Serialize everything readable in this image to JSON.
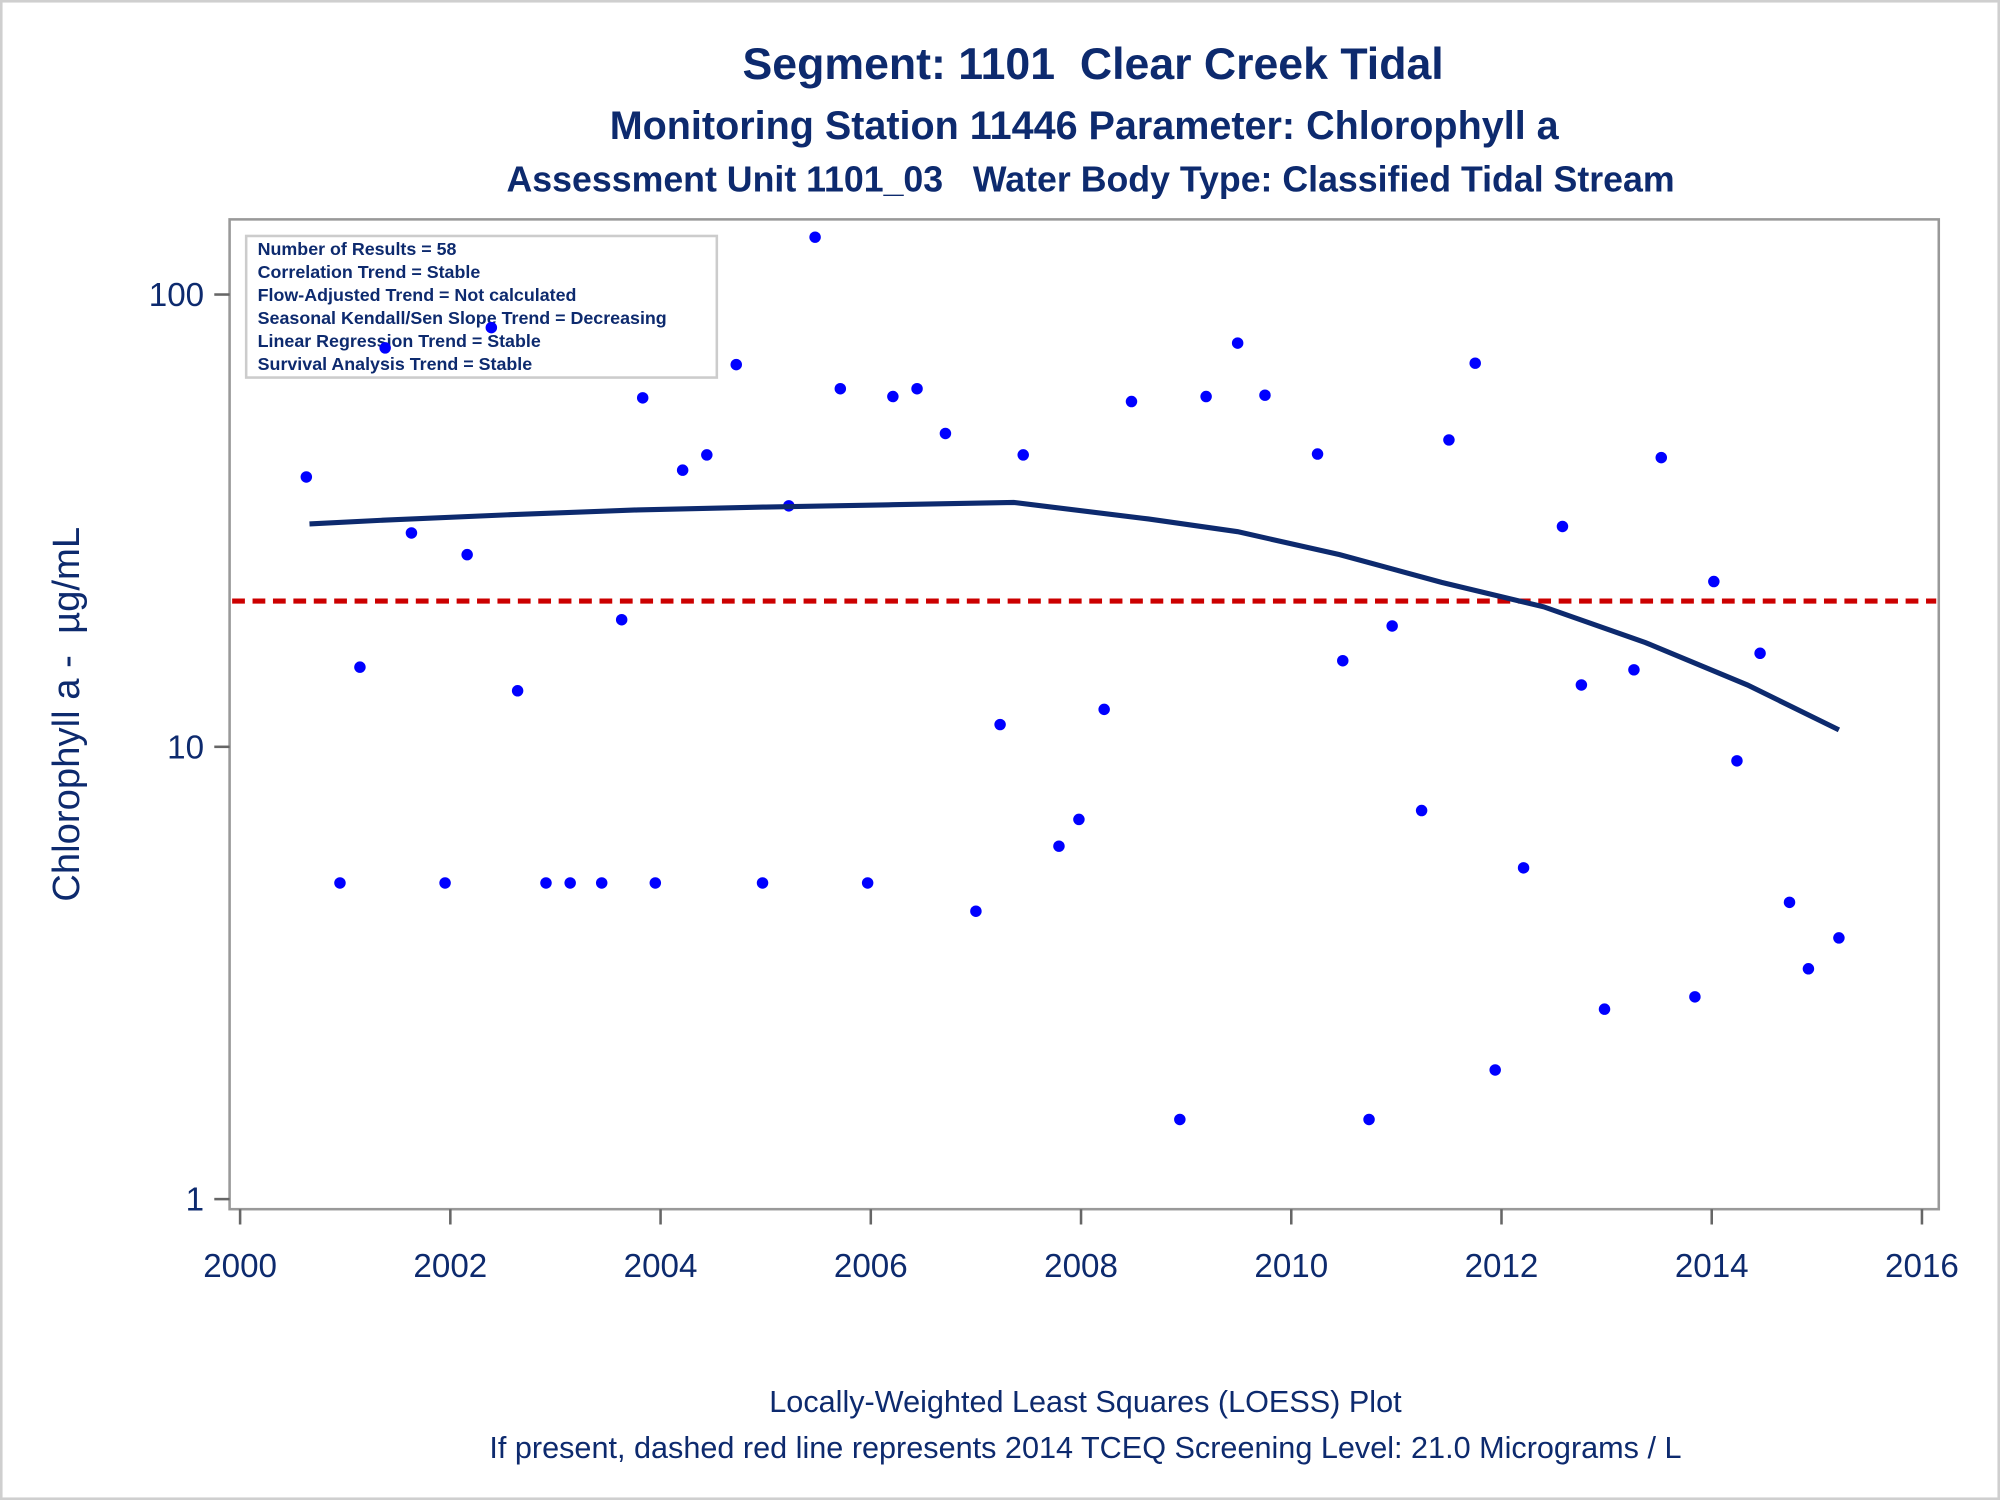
{
  "chart_data": {
    "type": "scatter",
    "title": "Segment: 1101  Clear Creek Tidal",
    "subtitles": [
      "Monitoring Station 11446 Parameter: Chlorophyll a",
      "Assessment Unit 1101_03   Water Body Type: Classified Tidal Stream"
    ],
    "ylabel": "Chlorophyll a -  µg/mL",
    "footnotes": [
      "Locally-Weighted Least Squares (LOESS) Plot",
      "If present, dashed red line represents 2014 TCEQ Screening Level: 21.0 Micrograms / L"
    ],
    "stats": [
      "Number of Results = 58",
      "Correlation Trend = Stable",
      "Flow-Adjusted Trend = Not calculated",
      "Seasonal Kendall/Sen Slope Trend = Decreasing",
      "Linear Regression Trend = Stable",
      "Survival Analysis Trend = Stable"
    ],
    "xlim": [
      1999.9,
      2016.16
    ],
    "xticks": [
      2000,
      2002,
      2004,
      2006,
      2008,
      2010,
      2012,
      2014,
      2016
    ],
    "ylim": [
      0.95,
      146.6
    ],
    "yticks": [
      1,
      10,
      100
    ],
    "log_y": true,
    "series": [
      {
        "style": "markers",
        "color": "#0000ff",
        "x": [
          2000.63,
          2000.95,
          2001.14,
          2001.38,
          2001.63,
          2001.95,
          2002.16,
          2002.39,
          2002.64,
          2002.91,
          2003.14,
          2003.44,
          2003.63,
          2003.83,
          2003.95,
          2004.21,
          2004.44,
          2004.72,
          2004.97,
          2005.22,
          2005.47,
          2005.71,
          2005.97,
          2006.21,
          2006.44,
          2006.71,
          2007.0,
          2007.23,
          2007.45,
          2007.79,
          2007.98,
          2008.22,
          2008.48,
          2008.94,
          2009.19,
          2009.49,
          2009.75,
          2010.25,
          2010.49,
          2010.74,
          2010.96,
          2011.24,
          2011.5,
          2011.75,
          2011.94,
          2012.21,
          2012.58,
          2012.76,
          2012.98,
          2013.26,
          2013.52,
          2013.84,
          2014.02,
          2014.24,
          2014.46,
          2014.74,
          2014.92,
          2015.21
        ],
        "values": [
          39.5,
          5,
          15,
          76.2,
          29.7,
          5,
          26.6,
          84.5,
          13.3,
          5,
          5,
          5,
          19.1,
          59.1,
          5,
          40.9,
          44.2,
          70,
          5,
          34.1,
          133.9,
          61.9,
          5,
          59.5,
          61.9,
          49.3,
          4.33,
          11.2,
          44.2,
          6.03,
          6.91,
          12.1,
          58,
          1.5,
          59.5,
          78.1,
          59.9,
          44.4,
          15.5,
          1.5,
          18.5,
          7.23,
          47.7,
          70.5,
          1.93,
          5.4,
          30.7,
          13.7,
          2.63,
          14.8,
          43.6,
          2.8,
          23.2,
          9.31,
          16.1,
          4.53,
          3.23,
          3.78
        ]
      },
      {
        "style": "line",
        "color": "#0d2a6e",
        "x": [
          2000.66,
          2001.36,
          2002.57,
          2003.78,
          2005.0,
          2006.21,
          2007.36,
          2008.64,
          2009.49,
          2010.46,
          2011.43,
          2012.4,
          2013.37,
          2014.34,
          2015.21
        ],
        "values": [
          31.1,
          31.7,
          32.6,
          33.4,
          33.9,
          34.3,
          34.7,
          31.9,
          29.9,
          26.6,
          23.1,
          20.4,
          17.0,
          13.7,
          10.9
        ]
      }
    ],
    "reference_line": {
      "value": 21.0,
      "color": "#cc0000"
    }
  }
}
